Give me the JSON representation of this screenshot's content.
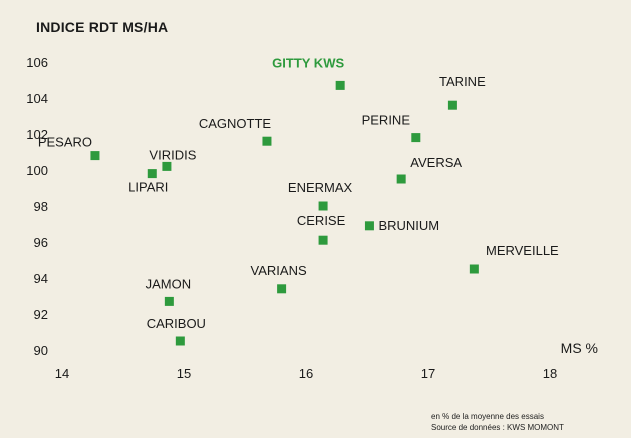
{
  "chart_data": {
    "type": "scatter",
    "ylabel": "INDICE RDT MS/HA",
    "xlabel": "MS %",
    "xlim": [
      14,
      18
    ],
    "ylim": [
      90,
      106
    ],
    "x_ticks": [
      "14",
      "15",
      "16",
      "17",
      "18"
    ],
    "y_ticks": [
      "90",
      "92",
      "94",
      "96",
      "98",
      "100",
      "102",
      "104",
      "106"
    ],
    "grid": false,
    "marker_color": "#2e9a3d",
    "highlight_color": "#2e9a3d",
    "background_color": "#f2eee3",
    "points": [
      {
        "label": "GITTY KWS",
        "x": 16.28,
        "y": 104.7,
        "highlight": true
      },
      {
        "label": "TARINE",
        "x": 17.2,
        "y": 103.6
      },
      {
        "label": "PERINE",
        "x": 16.9,
        "y": 101.8
      },
      {
        "label": "CAGNOTTE",
        "x": 15.68,
        "y": 101.6
      },
      {
        "label": "PESARO",
        "x": 14.27,
        "y": 100.8
      },
      {
        "label": "VIRIDIS",
        "x": 14.86,
        "y": 100.2
      },
      {
        "label": "LIPARI",
        "x": 14.74,
        "y": 99.8
      },
      {
        "label": "AVERSA",
        "x": 16.78,
        "y": 99.5
      },
      {
        "label": "ENERMAX",
        "x": 16.14,
        "y": 98.0
      },
      {
        "label": "CERISE",
        "x": 16.14,
        "y": 96.1
      },
      {
        "label": "BRUNIUM",
        "x": 16.52,
        "y": 96.9
      },
      {
        "label": "MERVEILLE",
        "x": 17.38,
        "y": 94.5
      },
      {
        "label": "VARIANS",
        "x": 15.8,
        "y": 93.4
      },
      {
        "label": "JAMON",
        "x": 14.88,
        "y": 92.7
      },
      {
        "label": "CARIBOU",
        "x": 14.97,
        "y": 90.5
      }
    ]
  },
  "notes": {
    "line1": "en % de la moyenne des essais",
    "line2": "Source de données : KWS MOMONT"
  }
}
